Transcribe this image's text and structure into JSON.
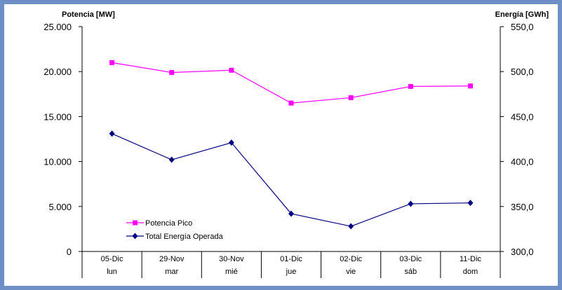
{
  "chart_data": {
    "type": "line",
    "categories": [
      "05-Dic",
      "29-Nov",
      "30-Nov",
      "01-Dic",
      "02-Dic",
      "03-Dic",
      "11-Dic"
    ],
    "days": [
      "lun",
      "mar",
      "mié",
      "jue",
      "vie",
      "sáb",
      "dom"
    ],
    "y_left": {
      "label": "Potencia [MW]",
      "range": [
        0,
        25000
      ],
      "ticks": [
        0,
        5000,
        10000,
        15000,
        20000,
        25000
      ],
      "tick_labels": [
        "0",
        "5.000",
        "10.000",
        "15.000",
        "20.000",
        "25.000"
      ]
    },
    "y_right": {
      "label": "Energía [GWh]",
      "range": [
        300,
        550
      ],
      "ticks": [
        300,
        350,
        400,
        450,
        500,
        550
      ],
      "tick_labels": [
        "300,0",
        "350,0",
        "400,0",
        "450,0",
        "500,0",
        "550,0"
      ]
    },
    "series": [
      {
        "name": "Potencia Pico",
        "axis": "left",
        "color": "#ff00ff",
        "marker": "square",
        "values": [
          21000,
          19900,
          20150,
          16500,
          17100,
          18350,
          18400
        ]
      },
      {
        "name": "Total Energía Operada",
        "axis": "right",
        "color": "#000080",
        "marker": "diamond",
        "values": [
          431,
          402,
          421,
          342,
          328,
          353,
          354
        ]
      }
    ],
    "legend_position": "lower-left",
    "grid": false
  }
}
